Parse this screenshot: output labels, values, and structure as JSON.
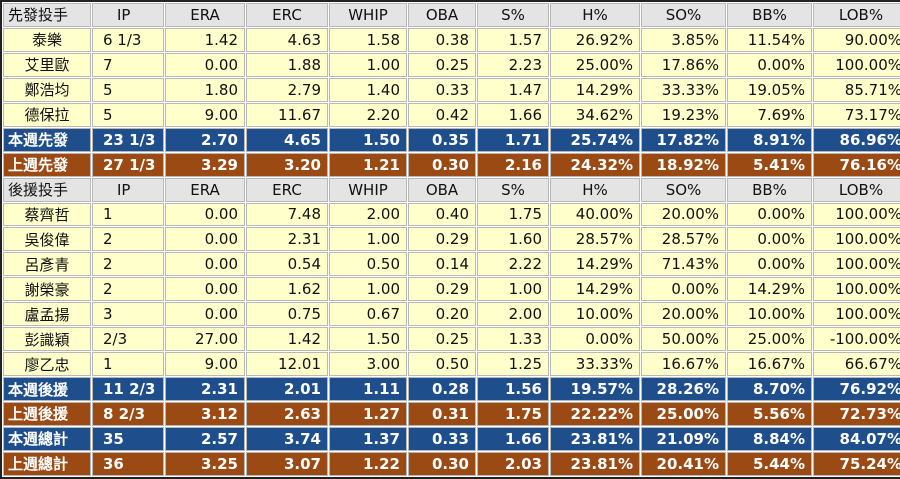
{
  "table": {
    "columns": [
      88,
      72,
      80,
      82,
      78,
      68,
      72,
      90,
      85,
      85,
      96
    ],
    "rows": [
      {
        "style": "header",
        "cells": [
          "先發投手",
          "IP",
          "ERA",
          "ERC",
          "WHIP",
          "OBA",
          "S%",
          "H%",
          "SO%",
          "BB%",
          "LOB%"
        ]
      },
      {
        "style": "data",
        "cells": [
          "泰樂",
          "6 1/3",
          "1.42",
          "4.63",
          "1.58",
          "0.38",
          "1.57",
          "26.92%",
          "3.85%",
          "11.54%",
          "90.00%"
        ]
      },
      {
        "style": "data",
        "cells": [
          "艾里歐",
          "7",
          "0.00",
          "1.88",
          "1.00",
          "0.25",
          "2.23",
          "25.00%",
          "17.86%",
          "0.00%",
          "100.00%"
        ]
      },
      {
        "style": "data",
        "cells": [
          "鄭浩均",
          "5",
          "1.80",
          "2.79",
          "1.40",
          "0.33",
          "1.47",
          "14.29%",
          "33.33%",
          "19.05%",
          "85.71%"
        ]
      },
      {
        "style": "data",
        "cells": [
          "德保拉",
          "5",
          "9.00",
          "11.67",
          "2.20",
          "0.42",
          "1.66",
          "34.62%",
          "19.23%",
          "7.69%",
          "73.17%"
        ]
      },
      {
        "style": "this-week",
        "cells": [
          "本週先發",
          "23 1/3",
          "2.70",
          "4.65",
          "1.50",
          "0.35",
          "1.71",
          "25.74%",
          "17.82%",
          "8.91%",
          "86.96%"
        ]
      },
      {
        "style": "last-week",
        "cells": [
          "上週先發",
          "27 1/3",
          "3.29",
          "3.20",
          "1.21",
          "0.30",
          "2.16",
          "24.32%",
          "18.92%",
          "5.41%",
          "76.16%"
        ]
      },
      {
        "style": "header",
        "cells": [
          "後援投手",
          "IP",
          "ERA",
          "ERC",
          "WHIP",
          "OBA",
          "S%",
          "H%",
          "SO%",
          "BB%",
          "LOB%"
        ]
      },
      {
        "style": "data",
        "cells": [
          "蔡齊哲",
          "1",
          "0.00",
          "7.48",
          "2.00",
          "0.40",
          "1.75",
          "40.00%",
          "20.00%",
          "0.00%",
          "100.00%"
        ]
      },
      {
        "style": "data",
        "cells": [
          "吳俊偉",
          "2",
          "0.00",
          "2.31",
          "1.00",
          "0.29",
          "1.60",
          "28.57%",
          "28.57%",
          "0.00%",
          "100.00%"
        ]
      },
      {
        "style": "data",
        "cells": [
          "呂彥青",
          "2",
          "0.00",
          "0.54",
          "0.50",
          "0.14",
          "2.22",
          "14.29%",
          "71.43%",
          "0.00%",
          "100.00%"
        ]
      },
      {
        "style": "data",
        "cells": [
          "謝榮豪",
          "2",
          "0.00",
          "1.62",
          "1.00",
          "0.29",
          "1.00",
          "14.29%",
          "0.00%",
          "14.29%",
          "100.00%"
        ]
      },
      {
        "style": "data",
        "cells": [
          "盧孟揚",
          "3",
          "0.00",
          "0.75",
          "0.67",
          "0.20",
          "2.00",
          "10.00%",
          "20.00%",
          "10.00%",
          "100.00%"
        ]
      },
      {
        "style": "data",
        "cells": [
          "彭識穎",
          "2/3",
          "27.00",
          "1.42",
          "1.50",
          "0.25",
          "1.33",
          "0.00%",
          "50.00%",
          "25.00%",
          "-100.00%"
        ]
      },
      {
        "style": "data",
        "cells": [
          "廖乙忠",
          "1",
          "9.00",
          "12.01",
          "3.00",
          "0.50",
          "1.25",
          "33.33%",
          "16.67%",
          "16.67%",
          "66.67%"
        ]
      },
      {
        "style": "this-week",
        "cells": [
          "本週後援",
          "11 2/3",
          "2.31",
          "2.01",
          "1.11",
          "0.28",
          "1.56",
          "19.57%",
          "28.26%",
          "8.70%",
          "76.92%"
        ]
      },
      {
        "style": "last-week",
        "cells": [
          "上週後援",
          "8 2/3",
          "3.12",
          "2.63",
          "1.27",
          "0.31",
          "1.75",
          "22.22%",
          "25.00%",
          "5.56%",
          "72.73%"
        ]
      },
      {
        "style": "this-week",
        "cells": [
          "本週總計",
          "35",
          "2.57",
          "3.74",
          "1.37",
          "0.33",
          "1.66",
          "23.81%",
          "21.09%",
          "8.84%",
          "84.07%"
        ]
      },
      {
        "style": "last-week",
        "cells": [
          "上週總計",
          "36",
          "3.25",
          "3.07",
          "1.22",
          "0.30",
          "2.03",
          "23.81%",
          "20.41%",
          "5.44%",
          "75.24%"
        ]
      }
    ]
  }
}
